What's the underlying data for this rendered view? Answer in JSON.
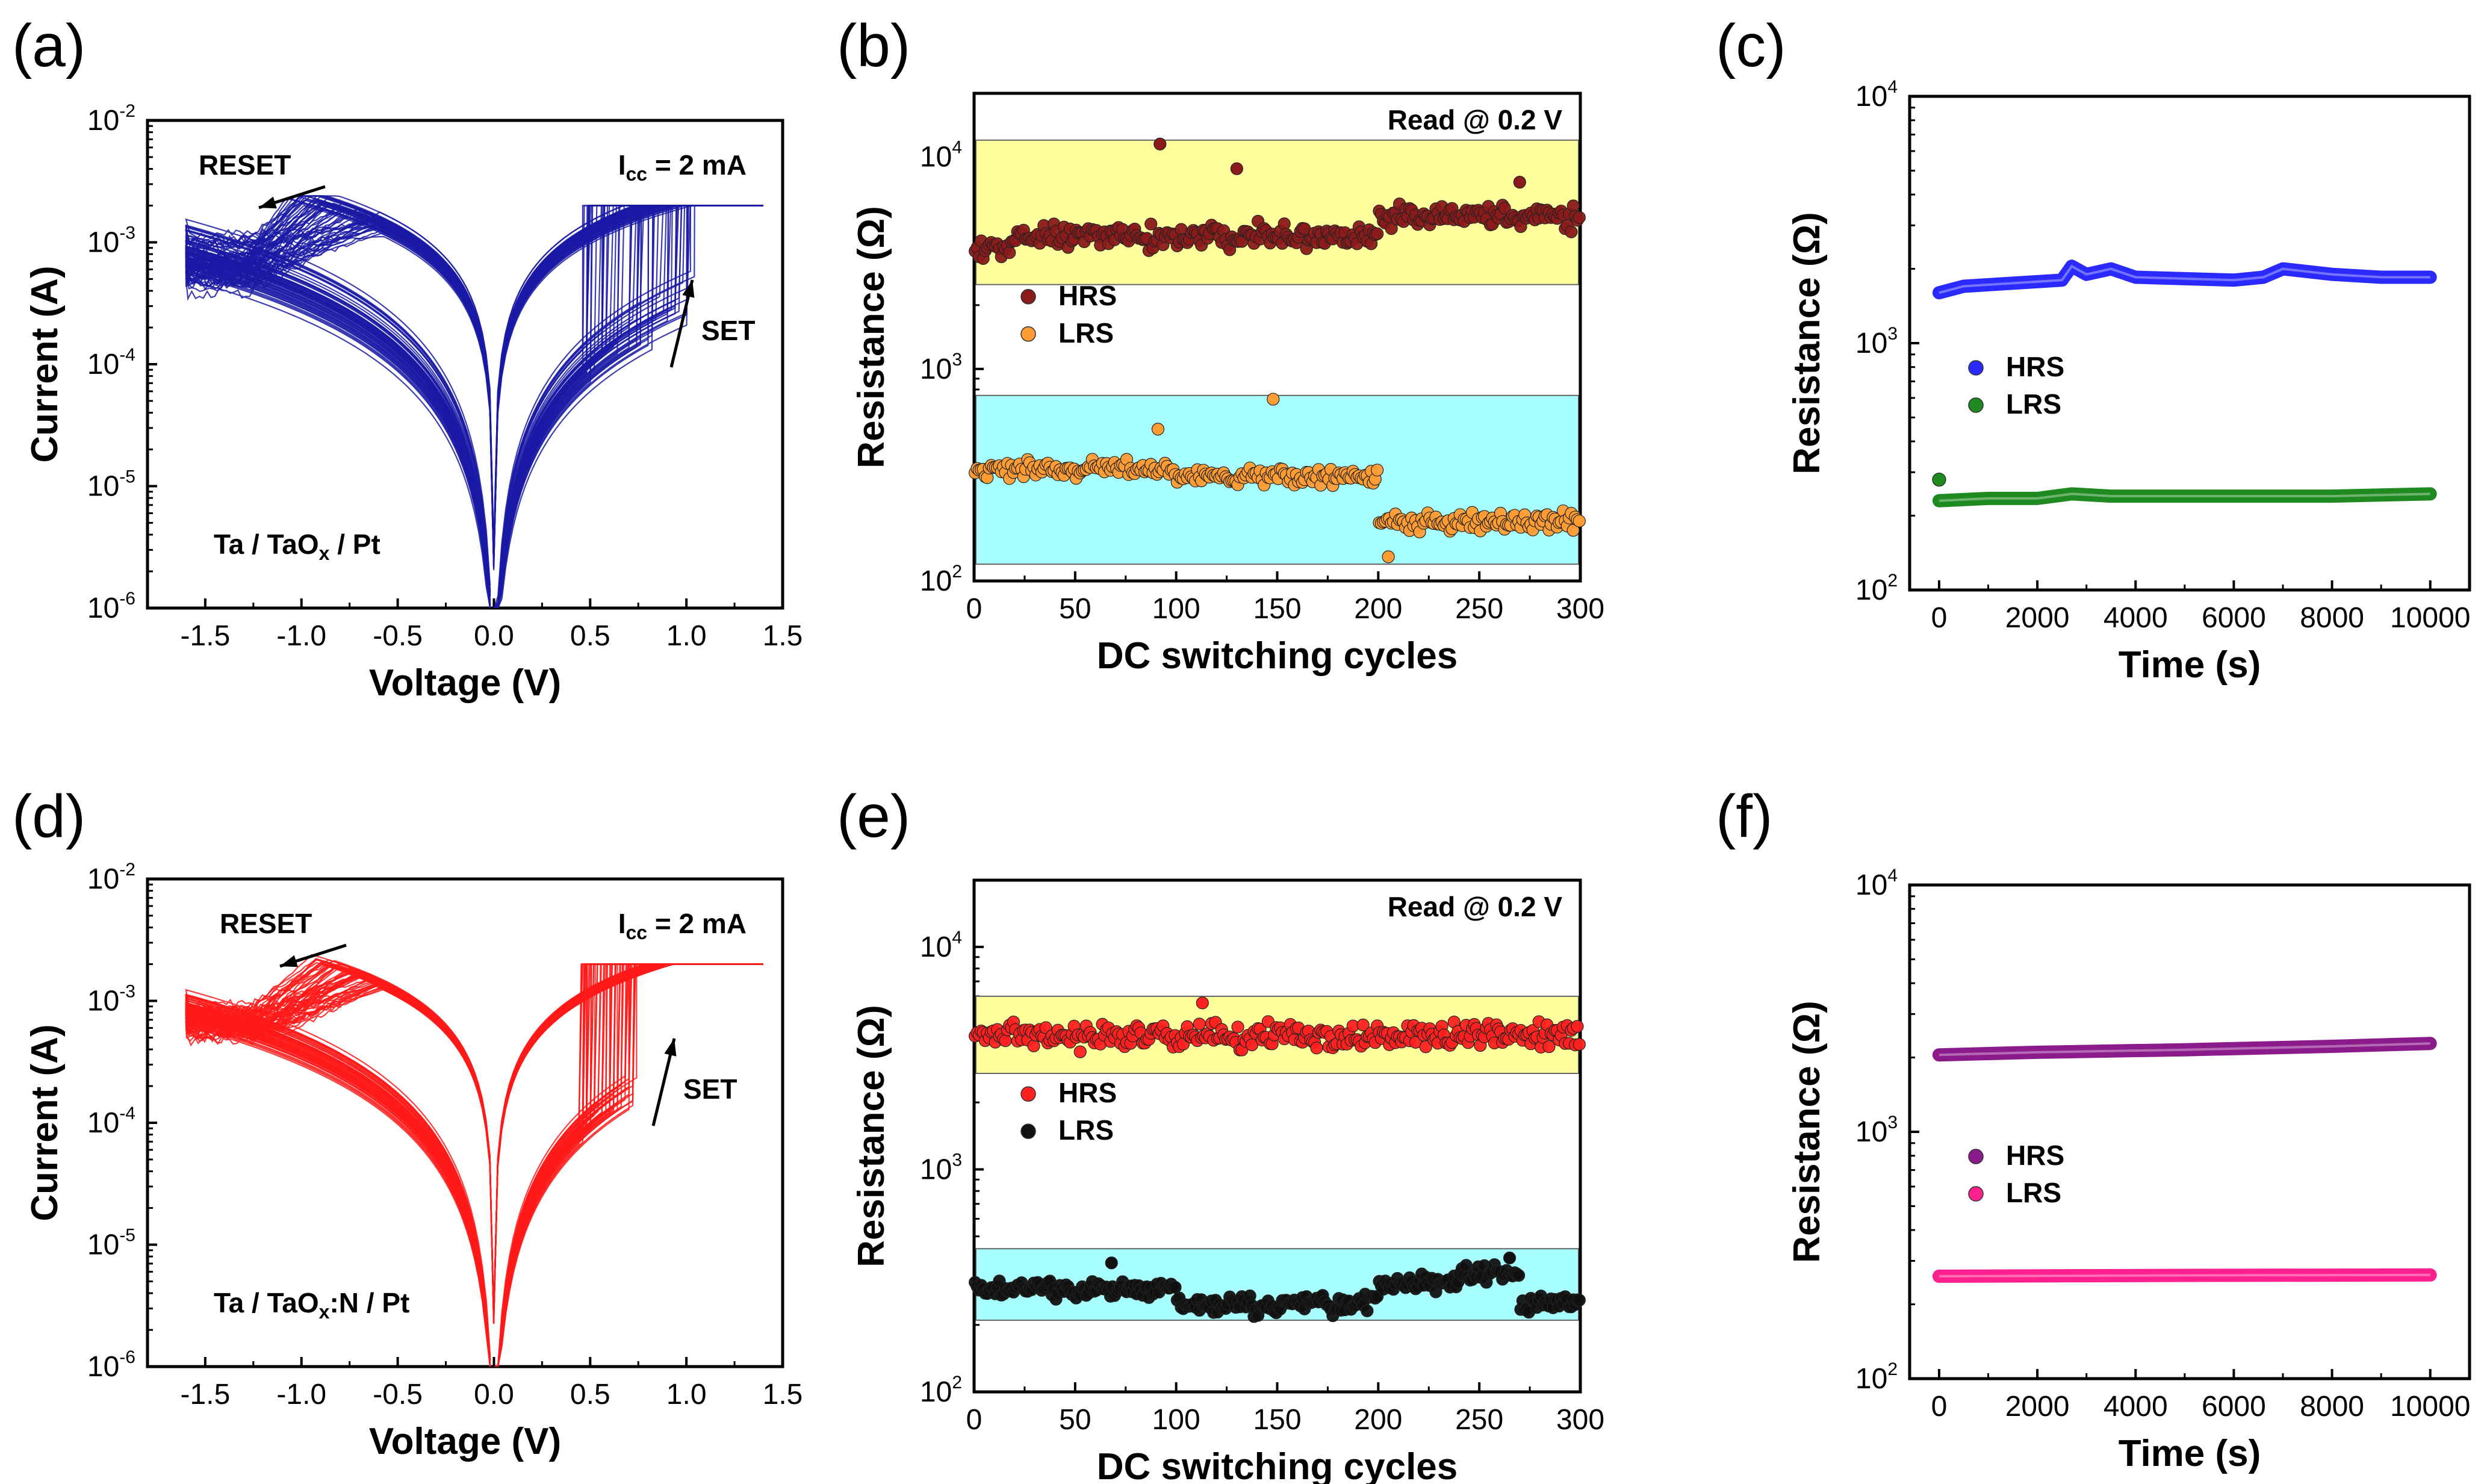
{
  "colors": {
    "iv_a": "#1a1aa6",
    "iv_d": "#ff1a1a",
    "band_hrs": "#ffff9e",
    "band_lrs": "#a8ffff",
    "b_hrs": "#8b1a1a",
    "b_lrs": "#ff9c33",
    "c_hrs": "#2a2aff",
    "c_lrs": "#1f8a1f",
    "e_hrs": "#ff2020",
    "e_lrs": "#111111",
    "f_hrs": "#8b1a8b",
    "f_lrs": "#ff2090"
  },
  "chart_data": [
    {
      "id": "a",
      "panel_label": "(a)",
      "type": "line",
      "description_note": "I-V hysteresis loops, log current",
      "xlabel": "Voltage (V)",
      "ylabel": "Current (A)",
      "xlim": [
        -1.8,
        1.5
      ],
      "ylim_log": [
        -6,
        -2
      ],
      "xticks": [
        "-1.5",
        "-1.0",
        "-0.5",
        "0.0",
        "0.5",
        "1.0",
        "1.5"
      ],
      "yticks": [
        {
          "base": "10",
          "exp": "-6"
        },
        {
          "base": "10",
          "exp": "-5"
        },
        {
          "base": "10",
          "exp": "-4"
        },
        {
          "base": "10",
          "exp": "-3"
        },
        {
          "base": "10",
          "exp": "-2"
        }
      ],
      "annotations": {
        "reset": "RESET",
        "set": "SET",
        "icc_main": "I",
        "icc_sub": "cc",
        "icc_rest": " = 2 mA",
        "device_a": "Ta / TaO",
        "device_sub": "x",
        "device_b": " / Pt"
      },
      "compliance_A": 0.002,
      "set_voltage_range_V": [
        0.45,
        1.05
      ],
      "reset_voltage_range_V": [
        -1.1,
        -0.55
      ],
      "cycles_drawn": 60
    },
    {
      "id": "b",
      "panel_label": "(b)",
      "type": "scatter",
      "xlabel": "DC switching cycles",
      "ylabel": "Resistance (Ω)",
      "xlim": [
        0,
        300
      ],
      "ylim_log": [
        2,
        4.3
      ],
      "xticks": [
        "0",
        "50",
        "100",
        "150",
        "200",
        "250",
        "300"
      ],
      "yticks": [
        {
          "base": "10",
          "exp": "2"
        },
        {
          "base": "10",
          "exp": "3"
        },
        {
          "base": "10",
          "exp": "4"
        }
      ],
      "read_note": "Read @ 0.2 V",
      "bands": {
        "hrs": [
          2500,
          12000
        ],
        "lrs": [
          120,
          750
        ]
      },
      "series": [
        {
          "name": "HRS",
          "segments": [
            [
              0,
              20,
              3800
            ],
            [
              20,
              200,
              4200
            ],
            [
              200,
              300,
              5200
            ]
          ],
          "outliers": [
            [
              92,
              11500
            ],
            [
              130,
              8800
            ],
            [
              270,
              7600
            ]
          ]
        },
        {
          "name": "LRS",
          "segments": [
            [
              0,
              100,
              340
            ],
            [
              100,
              200,
              310
            ],
            [
              200,
              300,
              190
            ]
          ],
          "outliers": [
            [
              148,
              720
            ],
            [
              91,
              520
            ],
            [
              205,
              130
            ]
          ]
        }
      ]
    },
    {
      "id": "c",
      "panel_label": "(c)",
      "type": "line",
      "xlabel": "Time (s)",
      "ylabel": "Resistance (Ω)",
      "xlim": [
        -600,
        10800
      ],
      "ylim_log": [
        2,
        4
      ],
      "xticks": [
        "0",
        "2000",
        "4000",
        "6000",
        "8000",
        "10000"
      ],
      "yticks": [
        {
          "base": "10",
          "exp": "2"
        },
        {
          "base": "10",
          "exp": "3"
        },
        {
          "base": "10",
          "exp": "4"
        }
      ],
      "series": [
        {
          "name": "HRS",
          "x": [
            0,
            500,
            1500,
            2500,
            2700,
            3000,
            3500,
            4000,
            6000,
            6600,
            7000,
            8000,
            9000,
            10000
          ],
          "y": [
            1600,
            1700,
            1750,
            1800,
            2050,
            1900,
            2000,
            1850,
            1800,
            1850,
            2000,
            1900,
            1850,
            1850
          ]
        },
        {
          "name": "LRS",
          "x": [
            0,
            1000,
            2000,
            2700,
            3500,
            5000,
            8000,
            10000
          ],
          "y": [
            230,
            235,
            235,
            245,
            240,
            240,
            240,
            245
          ],
          "outliers": [
            [
              0,
              280
            ]
          ]
        }
      ]
    },
    {
      "id": "d",
      "panel_label": "(d)",
      "type": "line",
      "description_note": "I-V hysteresis loops, log current",
      "xlabel": "Voltage (V)",
      "ylabel": "Current (A)",
      "xlim": [
        -1.8,
        1.5
      ],
      "ylim_log": [
        -6,
        -2
      ],
      "xticks": [
        "-1.5",
        "-1.0",
        "-0.5",
        "0.0",
        "0.5",
        "1.0",
        "1.5"
      ],
      "yticks": [
        {
          "base": "10",
          "exp": "-6"
        },
        {
          "base": "10",
          "exp": "-5"
        },
        {
          "base": "10",
          "exp": "-4"
        },
        {
          "base": "10",
          "exp": "-3"
        },
        {
          "base": "10",
          "exp": "-2"
        }
      ],
      "annotations": {
        "reset": "RESET",
        "set": "SET",
        "icc_main": "I",
        "icc_sub": "cc",
        "icc_rest": " = 2 mA",
        "device_a": "Ta / TaO",
        "device_sub": "x",
        "device_b": ":N / Pt"
      },
      "compliance_A": 0.002,
      "set_voltage_range_V": [
        0.45,
        0.75
      ],
      "reset_voltage_range_V": [
        -0.95,
        -0.55
      ],
      "cycles_drawn": 60
    },
    {
      "id": "e",
      "panel_label": "(e)",
      "type": "scatter",
      "xlabel": "DC switching cycles",
      "ylabel": "Resistance (Ω)",
      "xlim": [
        0,
        300
      ],
      "ylim_log": [
        2,
        4.3
      ],
      "xticks": [
        "0",
        "50",
        "100",
        "150",
        "200",
        "250",
        "300"
      ],
      "yticks": [
        {
          "base": "10",
          "exp": "2"
        },
        {
          "base": "10",
          "exp": "3"
        },
        {
          "base": "10",
          "exp": "4"
        }
      ],
      "read_note": "Read @ 0.2 V",
      "bands": {
        "hrs": [
          2700,
          6000
        ],
        "lrs": [
          210,
          440
        ]
      },
      "series": [
        {
          "name": "HRS",
          "segments": [
            [
              0,
              300,
              4000
            ]
          ],
          "outliers": [
            [
              113,
              5600
            ]
          ]
        },
        {
          "name": "LRS",
          "segments": [
            [
              0,
              100,
              290
            ],
            [
              100,
              200,
              245
            ],
            [
              200,
              240,
              310
            ],
            [
              240,
              270,
              340
            ],
            [
              270,
              300,
              250
            ]
          ],
          "outliers": [
            [
              68,
              380
            ],
            [
              265,
              400
            ]
          ]
        }
      ]
    },
    {
      "id": "f",
      "panel_label": "(f)",
      "type": "line",
      "xlabel": "Time (s)",
      "ylabel": "Resistance (Ω)",
      "xlim": [
        -600,
        10800
      ],
      "ylim_log": [
        2,
        4
      ],
      "xticks": [
        "0",
        "2000",
        "4000",
        "6000",
        "8000",
        "10000"
      ],
      "yticks": [
        {
          "base": "10",
          "exp": "2"
        },
        {
          "base": "10",
          "exp": "3"
        },
        {
          "base": "10",
          "exp": "4"
        }
      ],
      "series": [
        {
          "name": "HRS",
          "x": [
            0,
            2000,
            5000,
            8000,
            10000
          ],
          "y": [
            2050,
            2100,
            2150,
            2220,
            2280
          ]
        },
        {
          "name": "LRS",
          "x": [
            0,
            5000,
            10000
          ],
          "y": [
            260,
            262,
            263
          ]
        }
      ]
    }
  ]
}
